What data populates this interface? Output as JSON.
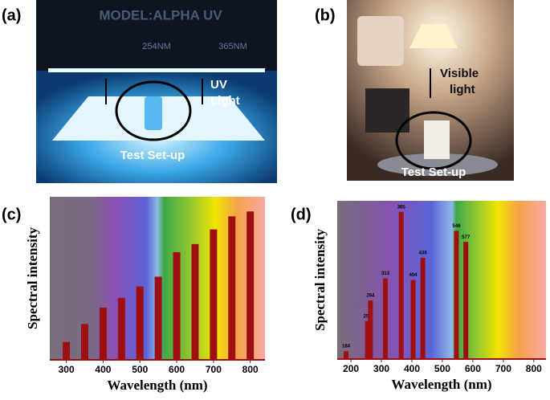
{
  "photos": [
    {
      "label": "(a)",
      "texts": [
        "MODEL:ALPHA UV",
        "254NM",
        "365NM",
        "UV",
        "Light",
        "Test Set-up"
      ]
    },
    {
      "label": "(b)",
      "texts": [
        "Visible",
        "light",
        "Test Set-up"
      ]
    }
  ],
  "chart_data": [
    {
      "type": "bar",
      "label": "(c)",
      "xlabel": "Wavelength (nm)",
      "ylabel": "Spectral intensity",
      "x": [
        300,
        350,
        400,
        450,
        500,
        550,
        600,
        650,
        700,
        750,
        800
      ],
      "values": [
        11,
        22,
        32,
        38,
        45,
        51,
        66,
        71,
        80,
        88,
        91
      ],
      "color": "#9e0f12",
      "xlim": [
        255,
        840
      ],
      "ylim": [
        0,
        100
      ],
      "xticks": [
        300,
        400,
        500,
        600,
        700,
        800
      ]
    },
    {
      "type": "bar",
      "label": "(d)",
      "xlabel": "Wavelength (nm)",
      "ylabel": "Spectral intensity",
      "x": [
        184,
        254,
        264,
        313,
        365,
        404,
        436,
        546,
        577
      ],
      "values": [
        5,
        24,
        37,
        51,
        93,
        50,
        64,
        81,
        74
      ],
      "color": "#9e0f12",
      "xlim": [
        155,
        840
      ],
      "ylim": [
        0,
        100
      ],
      "xticks": [
        200,
        300,
        400,
        500,
        600,
        700,
        800
      ]
    }
  ]
}
